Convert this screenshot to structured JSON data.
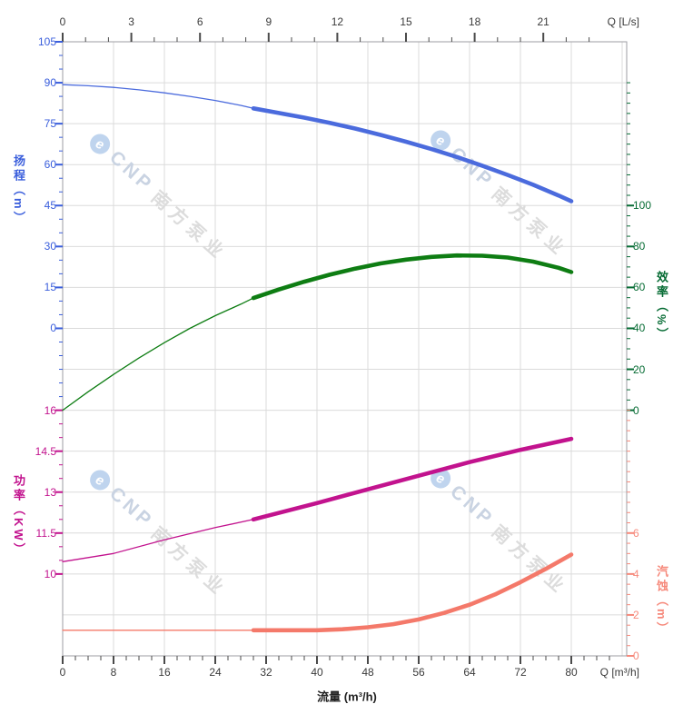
{
  "watermark": {
    "logo": "e",
    "brand": "CNP",
    "company": "南方泵业"
  },
  "chart_data": {
    "type": "line",
    "title": "",
    "grid": {
      "color": "#dbdbdb",
      "border_color": "#9e9ea3",
      "rows": 15,
      "col_step_flow": 8
    },
    "x_axis": {
      "top": {
        "label": "Q [L/s]",
        "ticks": [
          0,
          3,
          6,
          9,
          12,
          15,
          18,
          21
        ],
        "minor_step": 1,
        "minor_max": 23,
        "tick_color": "#4a4a4a",
        "label_color": "#3a3a3a"
      },
      "bottom": {
        "label": "Q [m³/h]",
        "title": "流量 (m³/h)",
        "ticks": [
          0,
          8,
          16,
          24,
          32,
          40,
          48,
          56,
          64,
          72,
          80
        ],
        "minor_step": 2,
        "minor_max": 86,
        "tick_color": "#4a4a4a",
        "label_color": "#3a3a3a"
      }
    },
    "y_axes": [
      {
        "id": "head",
        "title": "扬程（m）",
        "side": "left",
        "color": "#3a5edc",
        "ticks": [
          105,
          90,
          75,
          60,
          45,
          30,
          15,
          0
        ],
        "row_top": 0,
        "row_bottom": 7,
        "minor_div": 3,
        "minor_rows": [
          0,
          9
        ]
      },
      {
        "id": "efficiency",
        "title": "效率（%）",
        "side": "right",
        "color": "#056b33",
        "ticks": [
          100,
          80,
          60,
          40,
          20,
          0
        ],
        "row_top": 4,
        "row_bottom": 9,
        "minor_div": 4,
        "minor_rows": [
          1,
          9
        ]
      },
      {
        "id": "power",
        "title": "功率（KW）",
        "side": "left",
        "color": "#c2138e",
        "ticks": [
          16,
          14.5,
          13,
          11.5,
          10
        ],
        "row_top": 9,
        "row_bottom": 13,
        "minor_div": 3,
        "minor_rows": [
          9,
          13
        ]
      },
      {
        "id": "npsh",
        "title": "汽蚀（m）",
        "side": "right",
        "color": "#f6897b",
        "ticks": [
          6,
          4,
          2,
          0
        ],
        "row_top": 12,
        "row_bottom": 15,
        "minor_div": 4,
        "minor_rows": [
          9,
          15
        ]
      }
    ],
    "series": [
      {
        "name": "head",
        "axis": "head",
        "color": "#4b6bdd",
        "thin": [
          [
            0,
            89.3
          ],
          [
            4,
            88.9
          ],
          [
            8,
            88.3
          ],
          [
            12,
            87.4
          ],
          [
            16,
            86.3
          ],
          [
            20,
            85.0
          ],
          [
            24,
            83.5
          ],
          [
            28,
            81.7
          ],
          [
            30,
            80.6
          ]
        ],
        "thick": [
          [
            30,
            80.6
          ],
          [
            34,
            78.9
          ],
          [
            38,
            77.2
          ],
          [
            42,
            75.3
          ],
          [
            46,
            73.2
          ],
          [
            50,
            70.9
          ],
          [
            54,
            68.4
          ],
          [
            58,
            65.7
          ],
          [
            62,
            62.8
          ],
          [
            66,
            59.6
          ],
          [
            70,
            56.2
          ],
          [
            74,
            52.6
          ],
          [
            78,
            48.7
          ],
          [
            80,
            46.6
          ]
        ]
      },
      {
        "name": "efficiency",
        "axis": "efficiency",
        "color": "#0e7d13",
        "thin": [
          [
            0,
            0
          ],
          [
            4,
            9
          ],
          [
            8,
            17.5
          ],
          [
            12,
            25.5
          ],
          [
            16,
            33
          ],
          [
            20,
            40
          ],
          [
            24,
            46.2
          ],
          [
            28,
            51.8
          ],
          [
            30,
            54.8
          ]
        ],
        "thick": [
          [
            30,
            54.8
          ],
          [
            34,
            59
          ],
          [
            38,
            62.8
          ],
          [
            42,
            66.2
          ],
          [
            46,
            69.2
          ],
          [
            50,
            71.7
          ],
          [
            54,
            73.6
          ],
          [
            58,
            74.9
          ],
          [
            62,
            75.6
          ],
          [
            66,
            75.5
          ],
          [
            70,
            74.6
          ],
          [
            74,
            72.6
          ],
          [
            78,
            69.6
          ],
          [
            80,
            67.5
          ]
        ]
      },
      {
        "name": "power",
        "axis": "power",
        "color": "#c2138e",
        "thin": [
          [
            0,
            10.45
          ],
          [
            8,
            10.75
          ],
          [
            16,
            11.25
          ],
          [
            24,
            11.7
          ],
          [
            30,
            12.0
          ]
        ],
        "thick": [
          [
            30,
            12.0
          ],
          [
            40,
            12.6
          ],
          [
            48,
            13.1
          ],
          [
            56,
            13.6
          ],
          [
            64,
            14.1
          ],
          [
            72,
            14.55
          ],
          [
            80,
            14.95
          ]
        ]
      },
      {
        "name": "npsh",
        "axis": "npsh",
        "color": "#f4796a",
        "thin": [
          [
            0,
            1.25
          ],
          [
            30,
            1.25
          ]
        ],
        "thick": [
          [
            30,
            1.25
          ],
          [
            40,
            1.25
          ],
          [
            44,
            1.3
          ],
          [
            48,
            1.4
          ],
          [
            52,
            1.55
          ],
          [
            56,
            1.78
          ],
          [
            60,
            2.1
          ],
          [
            64,
            2.5
          ],
          [
            68,
            3.0
          ],
          [
            72,
            3.6
          ],
          [
            76,
            4.25
          ],
          [
            80,
            4.95
          ]
        ]
      }
    ]
  }
}
